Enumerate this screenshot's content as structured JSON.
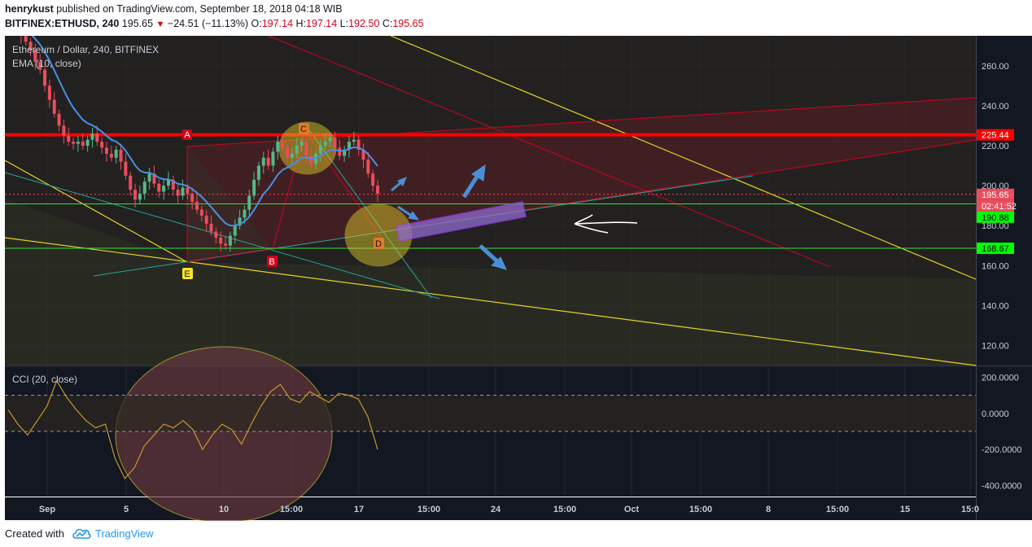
{
  "header": {
    "author": "henrykust",
    "published_text": "published on TradingView.com, September 18, 2018 04:18 WIB",
    "symbol": "BITFINEX:ETHUSD, 240",
    "last": "195.65",
    "change": "−24.51 (−11.13%)",
    "o_label": "O:",
    "o_value": "197.14",
    "h_label": "H:",
    "h_value": "197.14",
    "l_label": "L:",
    "l_value": "192.50",
    "c_label": "C:",
    "c_value": "195.65"
  },
  "legend": {
    "title": "Ethereum / Dollar, 240, BITFINEX",
    "indicator": "EMA (10, close)",
    "cci": "CCI (20, close)"
  },
  "footer": {
    "created_with": "Created with",
    "brand": "TradingView"
  },
  "colors": {
    "background": "#131722",
    "up": "#53b987",
    "down": "#eb4d5c",
    "ema": "#4a90e2",
    "cci": "#c8962e",
    "resistance": "#ff0000",
    "support": "#00ff00",
    "trend_yellow": "#e6d32a",
    "accent_blue": "#2196f3"
  },
  "chart_data": {
    "type": "candlestick",
    "symbol": "BITFINEX:ETHUSD",
    "interval": "240",
    "price_axis": {
      "min": 110,
      "max": 275,
      "ticks": [
        120,
        140,
        160,
        180,
        200,
        220,
        240,
        260
      ]
    },
    "price_axis_labels": [
      "120.00",
      "140.00",
      "160.00",
      "180.00",
      "200.00",
      "220.00",
      "240.00",
      "260.00"
    ],
    "time_axis_labels": [
      "Sep",
      "5",
      "10",
      "15:00",
      "17",
      "15:00",
      "24",
      "15:00",
      "Oct",
      "15:00",
      "8",
      "15:00",
      "15",
      "15:0"
    ],
    "price_markers": [
      {
        "label": "225.44",
        "value": 225.44,
        "color": "#ff0000"
      },
      {
        "label": "195.65",
        "value": 195.65,
        "color": "#eb4d5c"
      },
      {
        "label": "02:41:52",
        "value": 190.2,
        "color": "#eb4d5c"
      },
      {
        "label": "190.88",
        "value": 190.88,
        "color": "#00ff00"
      },
      {
        "label": "168.67",
        "value": 168.67,
        "color": "#00ff00"
      }
    ],
    "horizontal_lines": [
      {
        "value": 225.44,
        "color": "#ff0000"
      },
      {
        "value": 190.88,
        "color": "#00ff00"
      },
      {
        "value": 168.67,
        "color": "#00ff00"
      }
    ],
    "point_labels": [
      "A",
      "B",
      "C",
      "D",
      "E"
    ],
    "close_series": [
      280,
      275,
      272,
      268,
      262,
      258,
      250,
      243,
      236,
      230,
      225,
      222,
      221,
      222,
      220,
      223,
      226,
      222,
      219,
      216,
      214,
      218,
      212,
      205,
      198,
      193,
      196,
      202,
      206,
      201,
      197,
      200,
      203,
      198,
      195,
      199,
      196,
      192,
      188,
      185,
      181,
      177,
      174,
      171,
      170,
      175,
      180,
      184,
      188,
      195,
      203,
      210,
      214,
      210,
      217,
      222,
      219,
      214,
      216,
      220,
      222,
      215,
      211,
      216,
      220,
      222,
      224,
      219,
      215,
      218,
      222,
      223,
      218,
      213,
      206,
      200,
      196
    ],
    "close_x": {
      "start_label": "Sep",
      "end_label": "17"
    },
    "cci": {
      "axis_ticks": [
        200,
        0,
        -200,
        -400
      ],
      "axis_labels": [
        "200.0000",
        "0.0000",
        "-200.0000",
        "-400.0000"
      ],
      "levels": [
        100,
        -100
      ],
      "values": [
        20,
        -60,
        -120,
        -40,
        40,
        180,
        90,
        20,
        -40,
        -80,
        -60,
        -250,
        -360,
        -300,
        -180,
        -120,
        -60,
        -80,
        -40,
        -90,
        -200,
        -120,
        -60,
        -90,
        -170,
        -60,
        40,
        120,
        160,
        80,
        60,
        120,
        90,
        60,
        110,
        100,
        80,
        -20,
        -200
      ]
    }
  }
}
